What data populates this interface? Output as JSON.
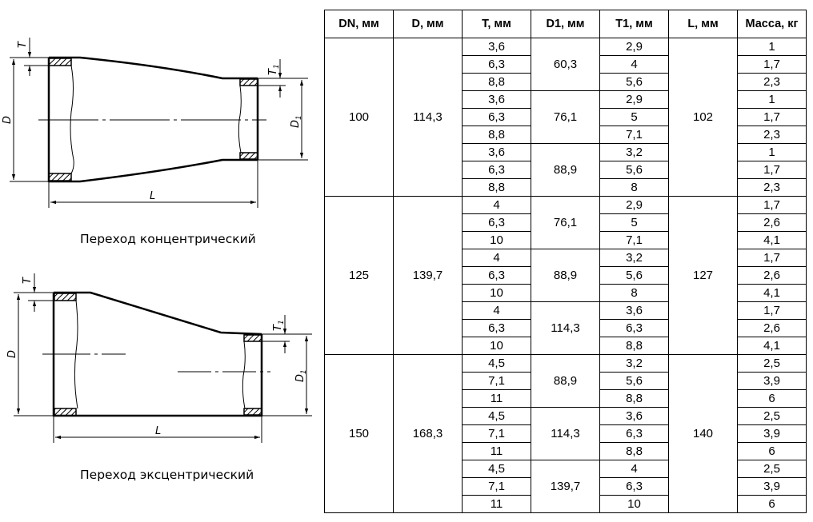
{
  "drawings": {
    "concentric": {
      "caption": "Переход концентрический",
      "labels": {
        "T": "T",
        "T1": "T",
        "T1_sub": "1",
        "D": "D",
        "D1": "D",
        "D1_sub": "1",
        "L": "L"
      }
    },
    "eccentric": {
      "caption": "Переход эксцентрический",
      "labels": {
        "T": "T",
        "T1": "T",
        "T1_sub": "1",
        "D": "D",
        "D1": "D",
        "D1_sub": "1",
        "L": "L"
      }
    }
  },
  "table": {
    "headers": [
      "DN, мм",
      "D, мм",
      "T, мм",
      "D1, мм",
      "T1, мм",
      "L, мм",
      "Масса, кг"
    ],
    "groups": [
      {
        "DN": "100",
        "D": "114,3",
        "L": "102",
        "subgroups": [
          {
            "D1": "60,3",
            "rows": [
              [
                "3,6",
                "2,9",
                "1"
              ],
              [
                "6,3",
                "4",
                "1,7"
              ],
              [
                "8,8",
                "5,6",
                "2,3"
              ]
            ]
          },
          {
            "D1": "76,1",
            "rows": [
              [
                "3,6",
                "2,9",
                "1"
              ],
              [
                "6,3",
                "5",
                "1,7"
              ],
              [
                "8,8",
                "7,1",
                "2,3"
              ]
            ]
          },
          {
            "D1": "88,9",
            "rows": [
              [
                "3,6",
                "3,2",
                "1"
              ],
              [
                "6,3",
                "5,6",
                "1,7"
              ],
              [
                "8,8",
                "8",
                "2,3"
              ]
            ]
          }
        ]
      },
      {
        "DN": "125",
        "D": "139,7",
        "L": "127",
        "subgroups": [
          {
            "D1": "76,1",
            "rows": [
              [
                "4",
                "2,9",
                "1,7"
              ],
              [
                "6,3",
                "5",
                "2,6"
              ],
              [
                "10",
                "7,1",
                "4,1"
              ]
            ]
          },
          {
            "D1": "88,9",
            "rows": [
              [
                "4",
                "3,2",
                "1,7"
              ],
              [
                "6,3",
                "5,6",
                "2,6"
              ],
              [
                "10",
                "8",
                "4,1"
              ]
            ]
          },
          {
            "D1": "114,3",
            "rows": [
              [
                "4",
                "3,6",
                "1,7"
              ],
              [
                "6,3",
                "6,3",
                "2,6"
              ],
              [
                "10",
                "8,8",
                "4,1"
              ]
            ]
          }
        ]
      },
      {
        "DN": "150",
        "D": "168,3",
        "L": "140",
        "subgroups": [
          {
            "D1": "88,9",
            "rows": [
              [
                "4,5",
                "3,2",
                "2,5"
              ],
              [
                "7,1",
                "5,6",
                "3,9"
              ],
              [
                "11",
                "8,8",
                "6"
              ]
            ]
          },
          {
            "D1": "114,3",
            "rows": [
              [
                "4,5",
                "3,6",
                "2,5"
              ],
              [
                "7,1",
                "6,3",
                "3,9"
              ],
              [
                "11",
                "8,8",
                "6"
              ]
            ]
          },
          {
            "D1": "139,7",
            "rows": [
              [
                "4,5",
                "4",
                "2,5"
              ],
              [
                "7,1",
                "6,3",
                "3,9"
              ],
              [
                "11",
                "10",
                "6"
              ]
            ]
          }
        ]
      }
    ]
  }
}
